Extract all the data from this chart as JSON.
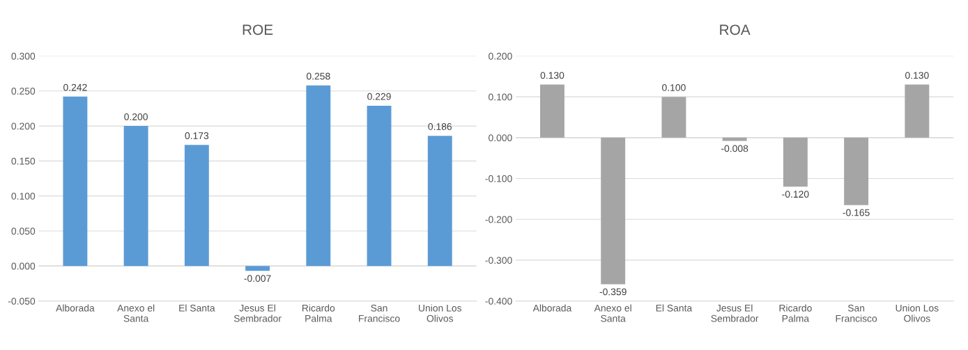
{
  "chart_data": [
    {
      "type": "bar",
      "title": "ROE",
      "categories": [
        "Alborada",
        "Anexo el Santa",
        "El Santa",
        "Jesus El Sembrador",
        "Ricardo Palma",
        "San Francisco",
        "Union Los Olivos"
      ],
      "series": [
        {
          "color": "#5b9bd5",
          "values": [
            0.242,
            0.2,
            0.173,
            -0.007,
            0.258,
            0.229,
            0.186
          ],
          "value_labels": [
            "0.242",
            "0.200",
            "0.173",
            "-0.007",
            "0.258",
            "0.229",
            "0.186"
          ]
        }
      ],
      "ylim": [
        -0.05,
        0.3
      ],
      "yticks": [
        {
          "value": -0.05,
          "label": "-0.050"
        },
        {
          "value": 0,
          "label": "0.000"
        },
        {
          "value": 0.05,
          "label": "0.050"
        },
        {
          "value": 0.1,
          "label": "0.100"
        },
        {
          "value": 0.15,
          "label": "0.150"
        },
        {
          "value": 0.2,
          "label": "0.200"
        },
        {
          "value": 0.25,
          "label": "0.250"
        },
        {
          "value": 0.3,
          "label": "0.300"
        }
      ],
      "grid": "y",
      "legend": false
    },
    {
      "type": "bar",
      "title": "ROA",
      "categories": [
        "Alborada",
        "Anexo el Santa",
        "El Santa",
        "Jesus El Sembrador",
        "Ricardo Palma",
        "San Francisco",
        "Union Los Olivos"
      ],
      "series": [
        {
          "color": "#a5a5a5",
          "values": [
            0.13,
            -0.359,
            0.1,
            -0.008,
            -0.12,
            -0.165,
            0.13
          ],
          "value_labels": [
            "0.130",
            "-0.359",
            "0.100",
            "-0.008",
            "-0.120",
            "-0.165",
            "0.130"
          ]
        }
      ],
      "ylim": [
        -0.4,
        0.2
      ],
      "yticks": [
        {
          "value": -0.4,
          "label": "-0.400"
        },
        {
          "value": -0.3,
          "label": "-0.300"
        },
        {
          "value": -0.2,
          "label": "-0.200"
        },
        {
          "value": -0.1,
          "label": "-0.100"
        },
        {
          "value": 0,
          "label": "0.000"
        },
        {
          "value": 0.1,
          "label": "0.100"
        },
        {
          "value": 0.2,
          "label": "0.200"
        }
      ],
      "grid": "y",
      "legend": false
    }
  ]
}
